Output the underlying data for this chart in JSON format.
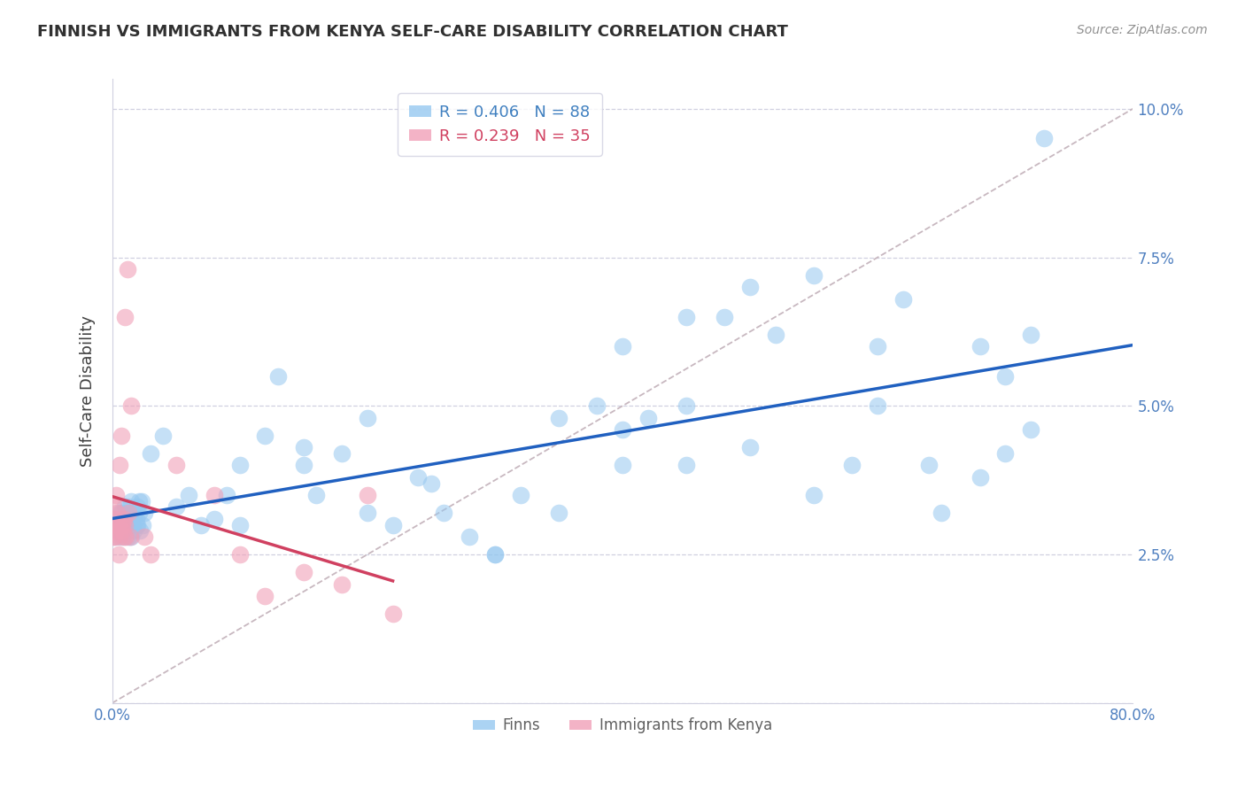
{
  "title": "FINNISH VS IMMIGRANTS FROM KENYA SELF-CARE DISABILITY CORRELATION CHART",
  "source": "Source: ZipAtlas.com",
  "ylabel": "Self-Care Disability",
  "xlim": [
    0.0,
    0.8
  ],
  "ylim": [
    0.0,
    0.105
  ],
  "yticks": [
    0.0,
    0.025,
    0.05,
    0.075,
    0.1
  ],
  "ytick_labels": [
    "",
    "2.5%",
    "5.0%",
    "7.5%",
    "10.0%"
  ],
  "xtick_label_left": "0.0%",
  "xtick_label_right": "80.0%",
  "finns_color": "#96c8f0",
  "kenya_color": "#f0a0b8",
  "finns_line_color": "#2060c0",
  "kenya_line_color": "#d04060",
  "dashed_line_color": "#c8b8c0",
  "background_color": "#ffffff",
  "grid_color": "#d0d0e0",
  "tick_color": "#5080c0",
  "title_color": "#303030",
  "source_color": "#909090",
  "legend_R_finn_color": "#4080c0",
  "legend_R_kenya_color": "#d04060",
  "finn_R": 0.406,
  "finn_N": 88,
  "kenya_R": 0.239,
  "kenya_N": 35,
  "finns_x": [
    0.003,
    0.004,
    0.005,
    0.006,
    0.007,
    0.008,
    0.009,
    0.01,
    0.011,
    0.012,
    0.013,
    0.014,
    0.015,
    0.016,
    0.017,
    0.018,
    0.019,
    0.02,
    0.02,
    0.021,
    0.022,
    0.023,
    0.024,
    0.025,
    0.003,
    0.005,
    0.007,
    0.009,
    0.011,
    0.013,
    0.015,
    0.017,
    0.019,
    0.021,
    0.03,
    0.04,
    0.05,
    0.06,
    0.07,
    0.08,
    0.09,
    0.1,
    0.12,
    0.13,
    0.15,
    0.16,
    0.18,
    0.2,
    0.22,
    0.24,
    0.26,
    0.28,
    0.3,
    0.32,
    0.35,
    0.38,
    0.4,
    0.42,
    0.45,
    0.48,
    0.5,
    0.52,
    0.55,
    0.58,
    0.6,
    0.62,
    0.64,
    0.68,
    0.7,
    0.72,
    0.4,
    0.45,
    0.5,
    0.55,
    0.6,
    0.65,
    0.68,
    0.7,
    0.72,
    0.73,
    0.1,
    0.15,
    0.2,
    0.25,
    0.3,
    0.35,
    0.4,
    0.45
  ],
  "finns_y": [
    0.03,
    0.031,
    0.029,
    0.032,
    0.03,
    0.028,
    0.031,
    0.033,
    0.03,
    0.032,
    0.028,
    0.031,
    0.034,
    0.03,
    0.029,
    0.032,
    0.031,
    0.033,
    0.03,
    0.032,
    0.029,
    0.034,
    0.03,
    0.032,
    0.028,
    0.03,
    0.032,
    0.029,
    0.031,
    0.033,
    0.028,
    0.032,
    0.03,
    0.034,
    0.042,
    0.045,
    0.033,
    0.035,
    0.03,
    0.031,
    0.035,
    0.04,
    0.045,
    0.055,
    0.04,
    0.035,
    0.042,
    0.032,
    0.03,
    0.038,
    0.032,
    0.028,
    0.025,
    0.035,
    0.048,
    0.05,
    0.06,
    0.048,
    0.04,
    0.065,
    0.07,
    0.062,
    0.072,
    0.04,
    0.05,
    0.068,
    0.04,
    0.038,
    0.055,
    0.046,
    0.046,
    0.065,
    0.043,
    0.035,
    0.06,
    0.032,
    0.06,
    0.042,
    0.062,
    0.095,
    0.03,
    0.043,
    0.048,
    0.037,
    0.025,
    0.032,
    0.04,
    0.05
  ],
  "kenya_x": [
    0.001,
    0.002,
    0.003,
    0.004,
    0.005,
    0.006,
    0.007,
    0.008,
    0.009,
    0.01,
    0.011,
    0.012,
    0.013,
    0.014,
    0.015,
    0.001,
    0.002,
    0.003,
    0.004,
    0.005,
    0.006,
    0.007,
    0.008,
    0.009,
    0.01,
    0.05,
    0.08,
    0.1,
    0.12,
    0.15,
    0.18,
    0.2,
    0.22,
    0.025,
    0.03
  ],
  "kenya_y": [
    0.028,
    0.031,
    0.029,
    0.032,
    0.03,
    0.028,
    0.03,
    0.029,
    0.031,
    0.03,
    0.028,
    0.073,
    0.032,
    0.028,
    0.05,
    0.033,
    0.028,
    0.035,
    0.03,
    0.025,
    0.04,
    0.045,
    0.03,
    0.028,
    0.065,
    0.04,
    0.035,
    0.025,
    0.018,
    0.022,
    0.02,
    0.035,
    0.015,
    0.028,
    0.025
  ]
}
